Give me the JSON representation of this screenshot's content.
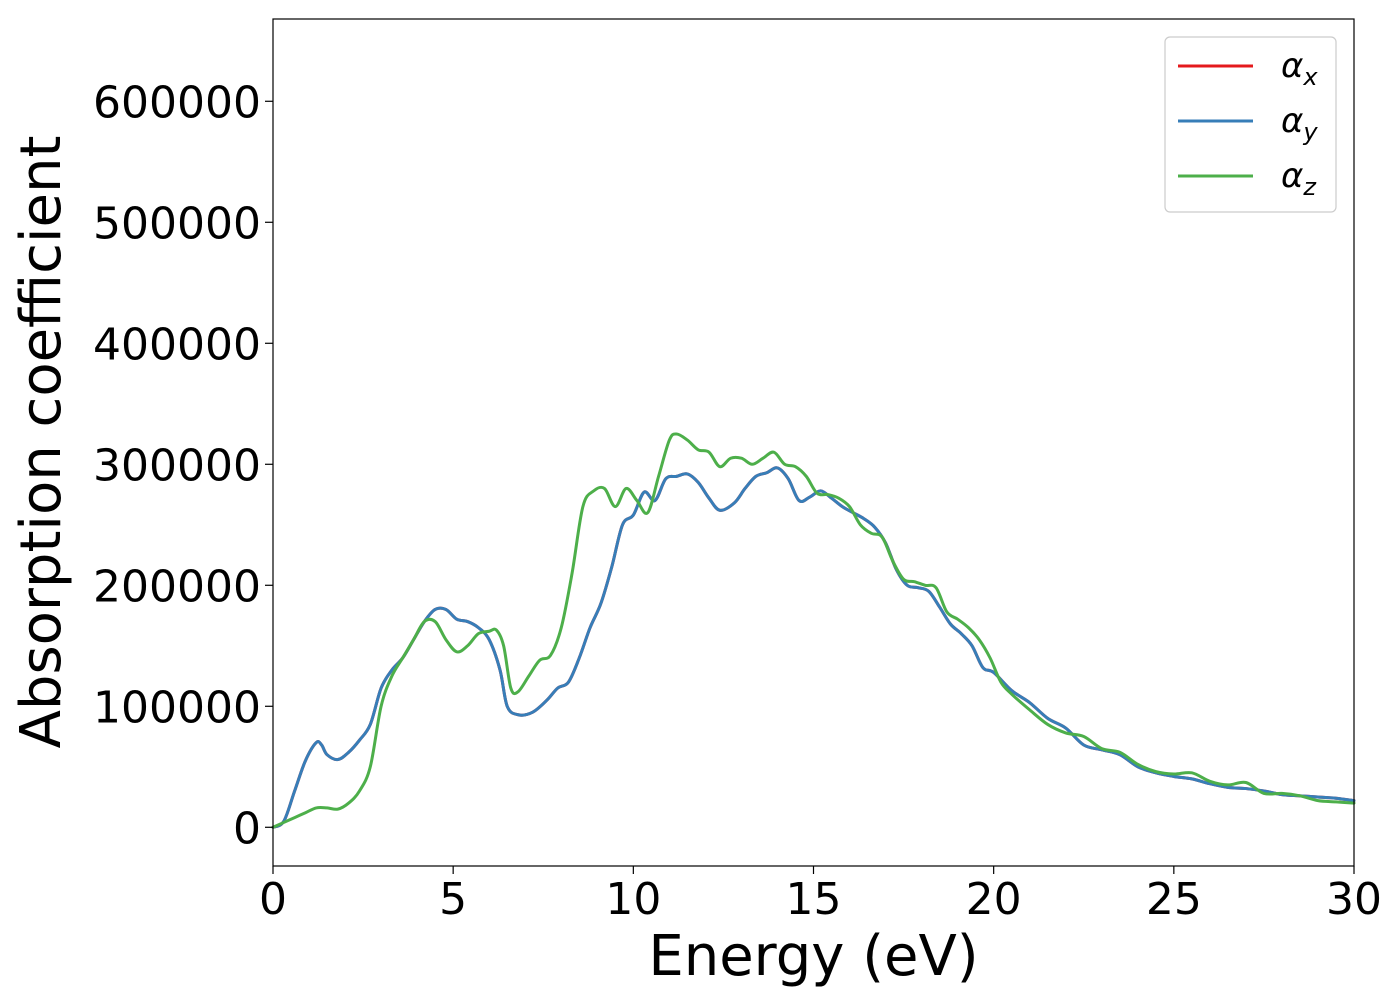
{
  "chart_data": {
    "type": "line",
    "title": "",
    "xlabel": "Energy (eV)",
    "ylabel": "Absorption coefficient",
    "xlim": [
      0,
      30
    ],
    "ylim": [
      -32000,
      668000
    ],
    "xticks": [
      0,
      5,
      10,
      15,
      20,
      25,
      30
    ],
    "xtick_labels": [
      "0",
      "5",
      "10",
      "15",
      "20",
      "25",
      "30"
    ],
    "yticks": [
      0,
      100000,
      200000,
      300000,
      400000,
      500000,
      600000
    ],
    "ytick_labels": [
      "0",
      "100000",
      "200000",
      "300000",
      "400000",
      "500000",
      "600000"
    ],
    "grid": false,
    "legend_position": "top-right",
    "series": [
      {
        "name": "α",
        "name_sub": "x",
        "color": "#e41a1c",
        "x": [
          0,
          0.3,
          0.6,
          0.9,
          1.2,
          1.35,
          1.5,
          1.8,
          2.1,
          2.4,
          2.7,
          3.0,
          3.3,
          3.6,
          3.9,
          4.2,
          4.5,
          4.8,
          5.1,
          5.4,
          5.7,
          6.0,
          6.3,
          6.5,
          6.8,
          7.2,
          7.6,
          7.9,
          8.2,
          8.5,
          8.8,
          9.1,
          9.4,
          9.7,
          10.0,
          10.3,
          10.6,
          10.9,
          11.2,
          11.5,
          11.8,
          12.1,
          12.4,
          12.8,
          13.1,
          13.4,
          13.7,
          14.0,
          14.3,
          14.6,
          14.9,
          15.2,
          15.5,
          15.8,
          16.1,
          16.4,
          16.7,
          17.0,
          17.3,
          17.6,
          17.9,
          18.2,
          18.5,
          18.8,
          19.1,
          19.4,
          19.7,
          20.0,
          20.5,
          21.0,
          21.5,
          22.0,
          22.5,
          23.0,
          23.5,
          24.0,
          24.5,
          25.0,
          25.5,
          26.0,
          26.5,
          27.0,
          27.5,
          28.0,
          28.5,
          29.0,
          29.5,
          30.0
        ],
        "values": [
          0,
          5000,
          30000,
          55000,
          70000,
          68000,
          60000,
          56000,
          62000,
          72000,
          85000,
          115000,
          130000,
          140000,
          155000,
          170000,
          180000,
          180000,
          172000,
          170000,
          165000,
          155000,
          130000,
          100000,
          93000,
          95000,
          105000,
          115000,
          120000,
          140000,
          165000,
          185000,
          215000,
          250000,
          258000,
          277000,
          270000,
          288000,
          290000,
          292000,
          285000,
          272000,
          262000,
          268000,
          280000,
          290000,
          293000,
          297000,
          288000,
          270000,
          273000,
          278000,
          272000,
          265000,
          260000,
          255000,
          248000,
          235000,
          213000,
          200000,
          198000,
          195000,
          182000,
          168000,
          160000,
          150000,
          132000,
          128000,
          113000,
          103000,
          90000,
          82000,
          68000,
          64000,
          60000,
          50000,
          45000,
          42000,
          40000,
          36000,
          33000,
          32000,
          30000,
          27000,
          26000,
          25000,
          24000,
          22000
        ]
      },
      {
        "name": "α",
        "name_sub": "y",
        "color": "#377eb8",
        "x": [
          0,
          0.3,
          0.6,
          0.9,
          1.2,
          1.35,
          1.5,
          1.8,
          2.1,
          2.4,
          2.7,
          3.0,
          3.3,
          3.6,
          3.9,
          4.2,
          4.5,
          4.8,
          5.1,
          5.4,
          5.7,
          6.0,
          6.3,
          6.5,
          6.8,
          7.2,
          7.6,
          7.9,
          8.2,
          8.5,
          8.8,
          9.1,
          9.4,
          9.7,
          10.0,
          10.3,
          10.6,
          10.9,
          11.2,
          11.5,
          11.8,
          12.1,
          12.4,
          12.8,
          13.1,
          13.4,
          13.7,
          14.0,
          14.3,
          14.6,
          14.9,
          15.2,
          15.5,
          15.8,
          16.1,
          16.4,
          16.7,
          17.0,
          17.3,
          17.6,
          17.9,
          18.2,
          18.5,
          18.8,
          19.1,
          19.4,
          19.7,
          20.0,
          20.5,
          21.0,
          21.5,
          22.0,
          22.5,
          23.0,
          23.5,
          24.0,
          24.5,
          25.0,
          25.5,
          26.0,
          26.5,
          27.0,
          27.5,
          28.0,
          28.5,
          29.0,
          29.5,
          30.0
        ],
        "values": [
          0,
          5000,
          30000,
          55000,
          70000,
          68000,
          60000,
          56000,
          62000,
          72000,
          85000,
          115000,
          130000,
          140000,
          155000,
          170000,
          180000,
          180000,
          172000,
          170000,
          165000,
          155000,
          130000,
          100000,
          93000,
          95000,
          105000,
          115000,
          120000,
          140000,
          165000,
          185000,
          215000,
          250000,
          258000,
          277000,
          270000,
          288000,
          290000,
          292000,
          285000,
          272000,
          262000,
          268000,
          280000,
          290000,
          293000,
          297000,
          288000,
          270000,
          273000,
          278000,
          272000,
          265000,
          260000,
          255000,
          248000,
          235000,
          213000,
          200000,
          198000,
          195000,
          182000,
          168000,
          160000,
          150000,
          132000,
          128000,
          113000,
          103000,
          90000,
          82000,
          68000,
          64000,
          60000,
          50000,
          45000,
          42000,
          40000,
          36000,
          33000,
          32000,
          30000,
          27000,
          26000,
          25000,
          24000,
          22000
        ]
      },
      {
        "name": "α",
        "name_sub": "z",
        "color": "#4daf4a",
        "x": [
          0,
          0.3,
          0.6,
          0.9,
          1.2,
          1.5,
          1.8,
          2.1,
          2.4,
          2.7,
          3.0,
          3.3,
          3.6,
          3.9,
          4.2,
          4.5,
          4.8,
          5.1,
          5.4,
          5.7,
          6.0,
          6.2,
          6.4,
          6.6,
          6.8,
          7.1,
          7.4,
          7.7,
          8.0,
          8.3,
          8.6,
          8.9,
          9.2,
          9.5,
          9.8,
          10.1,
          10.4,
          10.7,
          11.0,
          11.2,
          11.5,
          11.8,
          12.1,
          12.4,
          12.7,
          13.0,
          13.3,
          13.6,
          13.9,
          14.2,
          14.5,
          14.8,
          15.1,
          15.4,
          15.7,
          16.0,
          16.3,
          16.6,
          16.9,
          17.2,
          17.5,
          17.8,
          18.1,
          18.4,
          18.7,
          19.0,
          19.3,
          19.6,
          19.9,
          20.2,
          20.5,
          21.0,
          21.5,
          22.0,
          22.5,
          23.0,
          23.5,
          24.0,
          24.5,
          25.0,
          25.5,
          26.0,
          26.5,
          27.0,
          27.5,
          28.0,
          28.5,
          29.0,
          29.5,
          30.0
        ],
        "values": [
          0,
          4000,
          8000,
          12000,
          16000,
          16000,
          15000,
          20000,
          30000,
          50000,
          100000,
          125000,
          140000,
          155000,
          170000,
          170000,
          155000,
          145000,
          150000,
          160000,
          162000,
          163000,
          150000,
          115000,
          112000,
          125000,
          138000,
          142000,
          165000,
          210000,
          265000,
          278000,
          280000,
          265000,
          280000,
          270000,
          260000,
          290000,
          320000,
          325000,
          320000,
          312000,
          310000,
          298000,
          305000,
          305000,
          300000,
          305000,
          310000,
          300000,
          298000,
          290000,
          276000,
          275000,
          272000,
          265000,
          250000,
          243000,
          240000,
          220000,
          205000,
          203000,
          200000,
          198000,
          178000,
          172000,
          165000,
          155000,
          140000,
          120000,
          110000,
          97000,
          85000,
          78000,
          75000,
          65000,
          62000,
          52000,
          46000,
          44000,
          45000,
          38000,
          35000,
          37000,
          28000,
          28000,
          26000,
          22000,
          21000,
          20000
        ]
      }
    ]
  }
}
